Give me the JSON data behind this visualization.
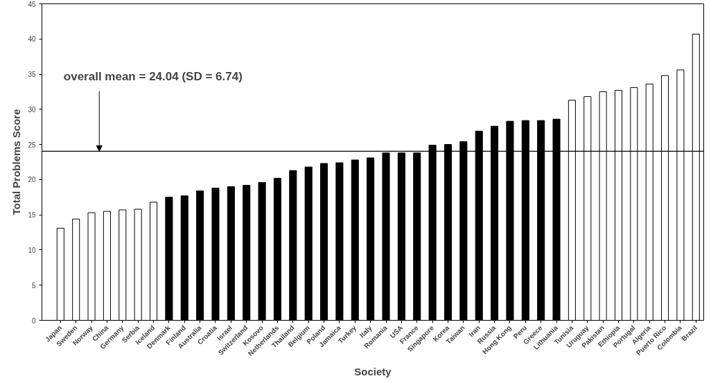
{
  "chart_data": {
    "type": "bar",
    "xlabel": "Society",
    "ylabel": "Total Problems Score",
    "categories": [
      "Japan",
      "Sweden",
      "Norway",
      "China",
      "Germany",
      "Serbia",
      "Iceland",
      "Denmark",
      "Finland",
      "Australia",
      "Croatia",
      "Israel",
      "Switzerland",
      "Kosovo",
      "Netherlands",
      "Thailand",
      "Belgium",
      "Poland",
      "Jamaica",
      "Turkey",
      "Italy",
      "Romania",
      "USA",
      "France",
      "Singapore",
      "Korea",
      "Taiwan",
      "Iran",
      "Russia",
      "Hong Kong",
      "Peru",
      "Greece",
      "Lithuania",
      "Tunisia",
      "Uruguay",
      "Pakistan",
      "Ethiopia",
      "Portugal",
      "Algeria",
      "Puerto Rico",
      "Colombia",
      "Brazil"
    ],
    "values": [
      13.1,
      14.4,
      15.3,
      15.5,
      15.7,
      15.8,
      16.8,
      17.5,
      17.7,
      18.4,
      18.8,
      19.0,
      19.2,
      19.6,
      20.2,
      21.3,
      21.8,
      22.3,
      22.4,
      22.8,
      23.1,
      23.8,
      23.8,
      23.8,
      24.9,
      25.0,
      25.4,
      26.9,
      27.6,
      28.3,
      28.4,
      28.4,
      28.6,
      31.3,
      31.8,
      32.5,
      32.7,
      33.1,
      33.6,
      34.8,
      35.6,
      40.7
    ],
    "colors": [
      "#ffffff",
      "#ffffff",
      "#ffffff",
      "#ffffff",
      "#ffffff",
      "#ffffff",
      "#ffffff",
      "#000000",
      "#000000",
      "#000000",
      "#000000",
      "#000000",
      "#000000",
      "#000000",
      "#000000",
      "#000000",
      "#000000",
      "#000000",
      "#000000",
      "#000000",
      "#000000",
      "#000000",
      "#000000",
      "#000000",
      "#000000",
      "#000000",
      "#000000",
      "#000000",
      "#000000",
      "#000000",
      "#000000",
      "#000000",
      "#000000",
      "#ffffff",
      "#ffffff",
      "#ffffff",
      "#ffffff",
      "#ffffff",
      "#ffffff",
      "#ffffff",
      "#ffffff",
      "#ffffff"
    ],
    "ylim": [
      0,
      45
    ],
    "yticks": [
      0,
      5,
      10,
      15,
      20,
      25,
      30,
      35,
      40,
      45
    ],
    "ref_lines": [
      {
        "axis": "y",
        "value": 24.04,
        "label": "overall  mean = 24.04 (SD = 6.74)",
        "color": "#000000"
      }
    ],
    "grid": false
  }
}
